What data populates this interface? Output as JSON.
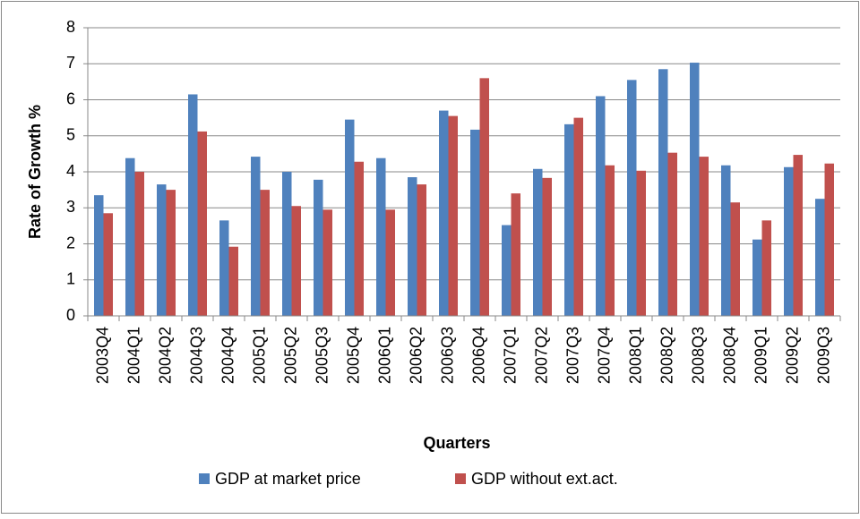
{
  "chart_data": {
    "type": "bar",
    "x_label": "Quarters",
    "y_label": "Rate of Growth %",
    "categories": [
      "2003Q4",
      "2004Q1",
      "2004Q2",
      "2004Q3",
      "2004Q4",
      "2005Q1",
      "2005Q2",
      "2005Q3",
      "2005Q4",
      "2006Q1",
      "2006Q2",
      "2006Q3",
      "2006Q4",
      "2007Q1",
      "2007Q2",
      "2007Q3",
      "2007Q4",
      "2008Q1",
      "2008Q2",
      "2008Q3",
      "2008Q4",
      "2009Q1",
      "2009Q2",
      "2009Q3"
    ],
    "series": [
      {
        "name": "GDP at market price",
        "color": "#4f81bd",
        "values": [
          3.35,
          4.38,
          3.65,
          6.15,
          2.65,
          4.42,
          4.0,
          3.78,
          5.45,
          4.38,
          3.85,
          5.7,
          5.17,
          2.52,
          4.08,
          5.32,
          6.1,
          6.55,
          6.85,
          7.03,
          4.18,
          2.12,
          4.13,
          3.25
        ]
      },
      {
        "name": "GDP without ext.act.",
        "color": "#c0504d",
        "values": [
          2.85,
          4.0,
          3.5,
          5.12,
          1.92,
          3.5,
          3.05,
          2.95,
          4.28,
          2.95,
          3.65,
          5.55,
          6.6,
          3.4,
          3.83,
          5.5,
          4.18,
          4.03,
          4.53,
          4.42,
          3.15,
          2.65,
          4.47,
          4.23
        ]
      }
    ],
    "ylim": [
      0,
      8
    ],
    "yticks": [
      0,
      1,
      2,
      3,
      4,
      5,
      6,
      7,
      8
    ],
    "grid": true,
    "legend": "bottom"
  }
}
